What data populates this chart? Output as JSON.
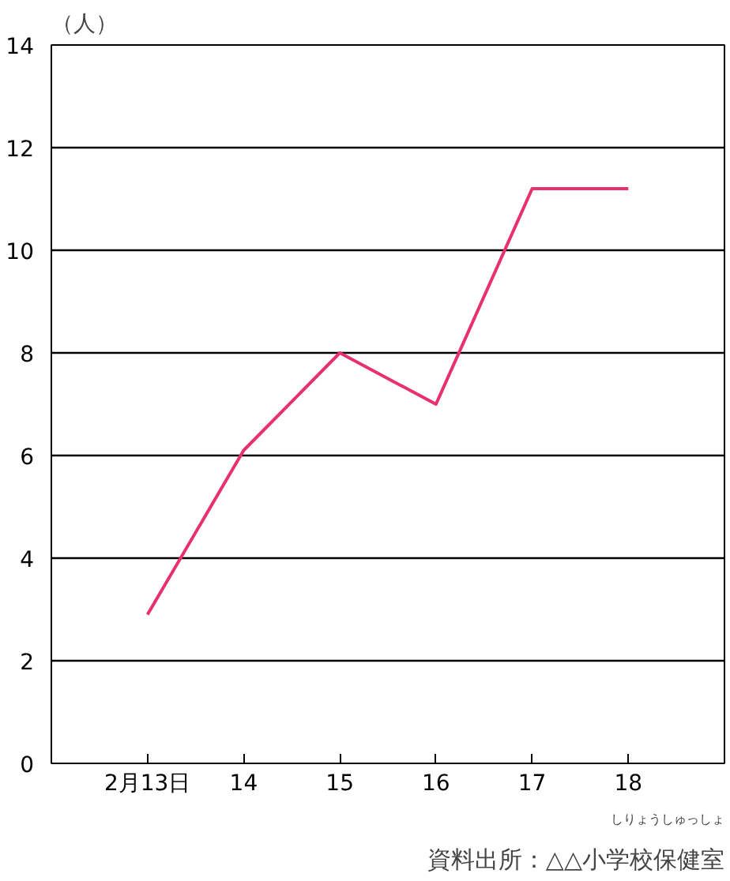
{
  "chart_data": {
    "type": "line",
    "ylabel": "（人）",
    "categories": [
      "2月13日",
      "14",
      "15",
      "16",
      "17",
      "18"
    ],
    "series": [
      {
        "color": "#e8306e",
        "values": [
          2.9,
          6.1,
          8.0,
          7.0,
          11.2,
          11.2
        ]
      }
    ],
    "ylim": [
      0,
      14
    ],
    "yticks": [
      0,
      2,
      4,
      6,
      8,
      10,
      12,
      14
    ],
    "grid": "y",
    "line_style": "solid",
    "annotations": [
      "しりょうしゅっしょ",
      "資料出所：△△小学校保健室"
    ]
  }
}
